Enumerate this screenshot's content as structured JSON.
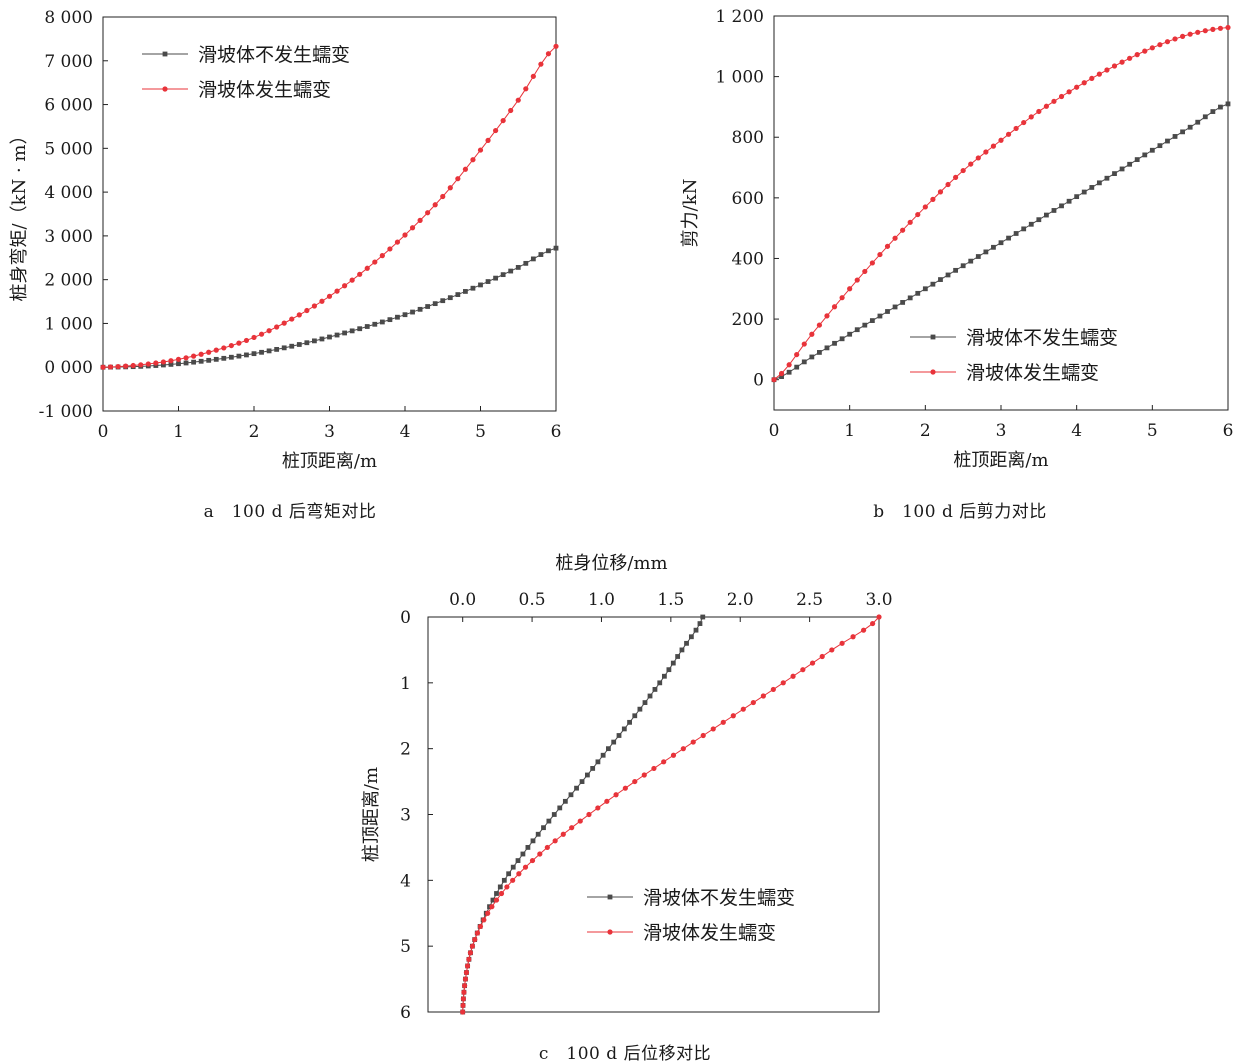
{
  "legend": {
    "no_creep": "滑坡体不发生蠕变",
    "creep": "滑坡体发生蠕变"
  },
  "colors": {
    "no_creep": "#4a4a4a",
    "creep": "#e8333a"
  },
  "captions": {
    "a": "a　100 d 后弯矩对比",
    "b": "b　100 d 后剪力对比",
    "c": "c　100 d 后位移对比"
  },
  "chart_data": [
    {
      "id": "a",
      "type": "line",
      "xlabel": "桩顶距离/m",
      "ylabel": "桩身弯矩/（kN · m）",
      "xlim": [
        0,
        6
      ],
      "ylim": [
        -1000,
        8000
      ],
      "xticks": [
        "0",
        "1",
        "2",
        "3",
        "4",
        "5",
        "6"
      ],
      "yticks": [
        "-1 000",
        "0 000",
        "1 000",
        "2 000",
        "3 000",
        "4 000",
        "5 000",
        "6 000",
        "7 000",
        "8 000"
      ],
      "legend_position": "top-left",
      "grid": false,
      "x": [
        0,
        0.5,
        1,
        1.5,
        2,
        2.5,
        3,
        3.5,
        4,
        4.5,
        5,
        5.5,
        6
      ],
      "series": [
        {
          "name": "滑坡体不发生蠕变",
          "values": [
            0,
            20,
            80,
            180,
            310,
            480,
            690,
            930,
            1200,
            1520,
            1880,
            2280,
            2720
          ]
        },
        {
          "name": "滑坡体发生蠕变",
          "values": [
            0,
            55,
            180,
            390,
            680,
            1100,
            1620,
            2260,
            3020,
            3900,
            4960,
            6100,
            7330
          ]
        }
      ]
    },
    {
      "id": "b",
      "type": "line",
      "xlabel": "桩顶距离/m",
      "ylabel": "剪力/kN",
      "xlim": [
        0,
        6
      ],
      "ylim": [
        -100,
        1200
      ],
      "xticks": [
        "0",
        "1",
        "2",
        "3",
        "4",
        "5",
        "6"
      ],
      "yticks": [
        "0",
        "200",
        "400",
        "600",
        "800",
        "1 000",
        "1 200"
      ],
      "legend_position": "bottom-right",
      "grid": false,
      "x": [
        0,
        0.5,
        1,
        1.5,
        2,
        2.5,
        3,
        3.5,
        4,
        4.5,
        5,
        5.5,
        6
      ],
      "series": [
        {
          "name": "滑坡体不发生蠕变",
          "values": [
            0,
            75,
            150,
            225,
            300,
            376,
            452,
            528,
            604,
            680,
            757,
            833,
            910
          ]
        },
        {
          "name": "滑坡体发生蠕变",
          "values": [
            0,
            150,
            300,
            440,
            570,
            690,
            790,
            885,
            965,
            1035,
            1095,
            1140,
            1162
          ]
        }
      ]
    },
    {
      "id": "c",
      "type": "line",
      "xlabel": "桩身位移/mm",
      "ylabel": "桩顶距离/m",
      "xlim": [
        -0.25,
        3.0
      ],
      "ylim": [
        0,
        6
      ],
      "y_inverted": true,
      "x_axis_position": "top",
      "xticks": [
        "0.0",
        "0.5",
        "1.0",
        "1.5",
        "2.0",
        "2.5",
        "3.0"
      ],
      "yticks": [
        "0",
        "1",
        "2",
        "3",
        "4",
        "5",
        "6"
      ],
      "legend_position": "bottom-right",
      "grid": false,
      "y": [
        0,
        0.5,
        1,
        1.5,
        2,
        2.5,
        3,
        3.5,
        4,
        4.5,
        5,
        5.5,
        6
      ],
      "series": [
        {
          "name": "滑坡体不发生蠕变",
          "values": [
            1.73,
            1.58,
            1.42,
            1.24,
            1.05,
            0.86,
            0.66,
            0.47,
            0.3,
            0.17,
            0.07,
            0.02,
            0.0
          ]
        },
        {
          "name": "滑坡体发生蠕变",
          "values": [
            3.0,
            2.66,
            2.31,
            1.95,
            1.59,
            1.24,
            0.91,
            0.61,
            0.36,
            0.18,
            0.07,
            0.02,
            0.0
          ]
        }
      ]
    }
  ]
}
